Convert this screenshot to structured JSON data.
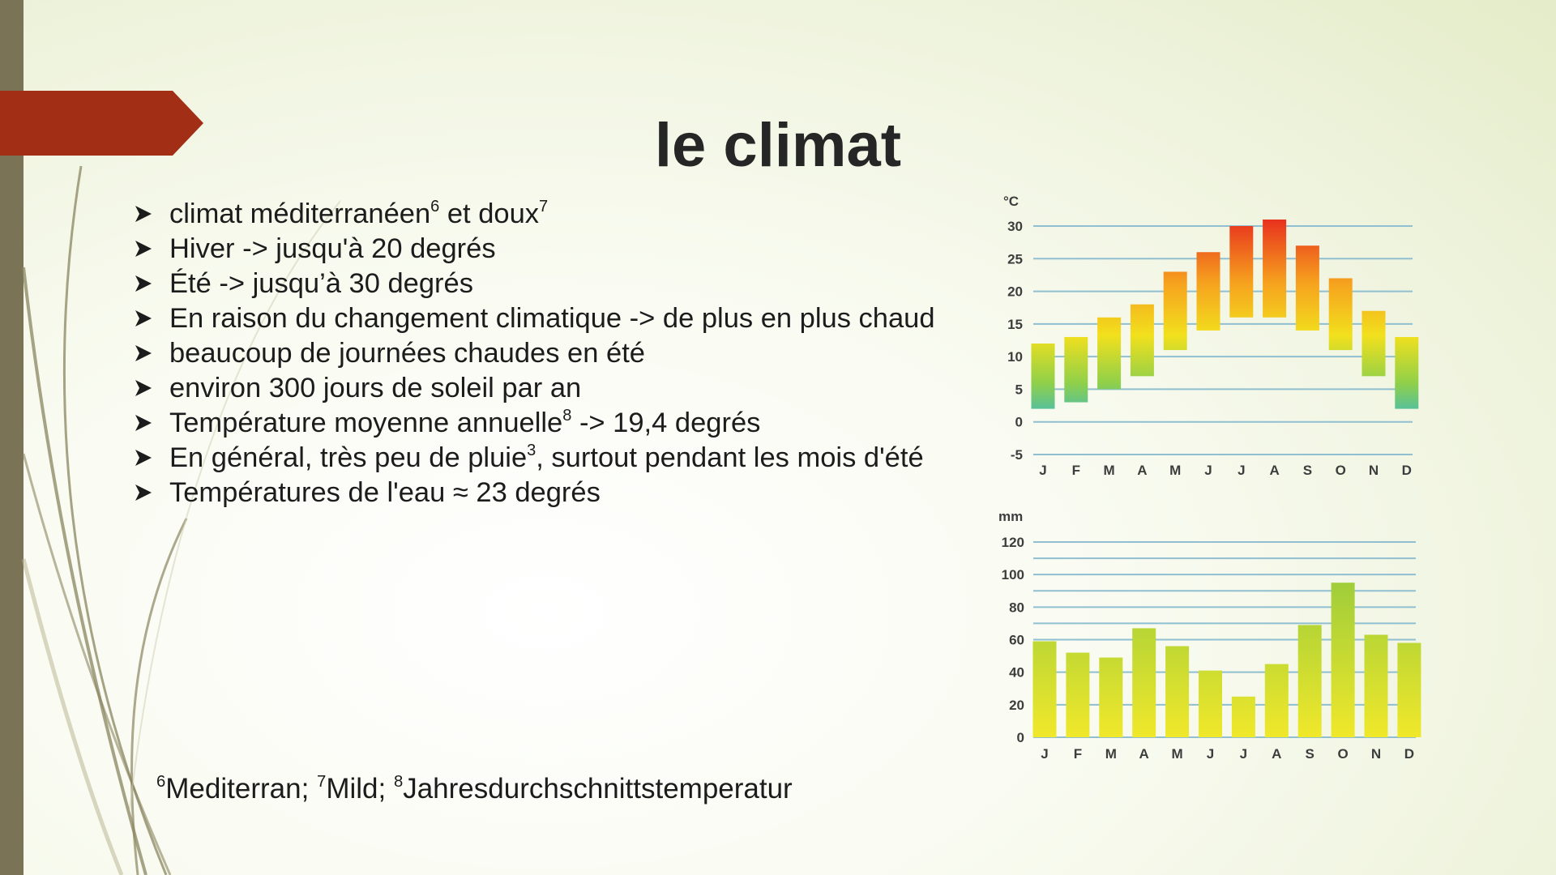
{
  "slide": {
    "title": "le climat",
    "bullets": [
      {
        "parts": [
          {
            "t": "climat méditerranéen"
          },
          {
            "s": "6"
          },
          {
            "t": " et doux"
          },
          {
            "s": "7"
          }
        ]
      },
      {
        "parts": [
          {
            "t": "Hiver ->  jusqu'à 20 degrés"
          }
        ]
      },
      {
        "parts": [
          {
            "t": "Été ->  jusqu’à 30 degrés"
          }
        ]
      },
      {
        "parts": [
          {
            "t": "En raison du changement climatique -> de plus en plus chaud"
          }
        ]
      },
      {
        "parts": [
          {
            "t": "beaucoup de journées chaudes en été"
          }
        ]
      },
      {
        "parts": [
          {
            "t": "environ 300 jours de soleil par an"
          }
        ]
      },
      {
        "parts": [
          {
            "t": "Température moyenne annuelle"
          },
          {
            "s": "8"
          },
          {
            "t": " -> 19,4 degrés"
          }
        ]
      },
      {
        "parts": [
          {
            "t": "En général, très peu de pluie"
          },
          {
            "s": "3"
          },
          {
            "t": ", surtout pendant les mois d'été"
          }
        ]
      },
      {
        "parts": [
          {
            "t": "Températures de l'eau ≈ 23 degrés"
          }
        ]
      }
    ],
    "footnote": {
      "parts": [
        {
          "s": "6"
        },
        {
          "t": "Mediterran; "
        },
        {
          "s": "7"
        },
        {
          "t": "Mild; "
        },
        {
          "s": "8"
        },
        {
          "t": "Jahresdurchschnittstemperatur"
        }
      ]
    }
  },
  "colors": {
    "banner": "#a32e16",
    "left_bar": "#7a7356",
    "gridline": "#8fbfd0",
    "temp_hot": "#e8331e",
    "temp_warm": "#f6a21e",
    "temp_mild": "#f2e01d",
    "temp_cool": "#8fd04a",
    "temp_cold": "#2bb5d8",
    "rain_top": "#9ccc3b",
    "rain_bottom": "#f0e82a"
  },
  "chart_data": [
    {
      "type": "bar",
      "subtype": "floating-range",
      "unit": "°C",
      "categories": [
        "J",
        "F",
        "M",
        "A",
        "M",
        "J",
        "J",
        "A",
        "S",
        "O",
        "N",
        "D"
      ],
      "series": [
        {
          "name": "",
          "min": [
            2,
            3,
            5,
            7,
            11,
            14,
            16,
            16,
            14,
            11,
            7,
            2
          ],
          "max": [
            12,
            13,
            16,
            18,
            23,
            26,
            30,
            31,
            27,
            22,
            17,
            13
          ]
        }
      ],
      "yticks": [
        30,
        25,
        20,
        15,
        10,
        5,
        0,
        -5
      ],
      "ylim": [
        -5,
        30
      ],
      "grid": true
    },
    {
      "type": "bar",
      "unit": "mm",
      "categories": [
        "J",
        "F",
        "M",
        "A",
        "M",
        "J",
        "J",
        "A",
        "S",
        "O",
        "N",
        "D"
      ],
      "values": [
        59,
        52,
        49,
        67,
        56,
        41,
        25,
        45,
        69,
        95,
        63,
        58
      ],
      "yticks": [
        120,
        100,
        80,
        60,
        40,
        20,
        0
      ],
      "ylim": [
        0,
        120
      ],
      "grid": true
    }
  ]
}
